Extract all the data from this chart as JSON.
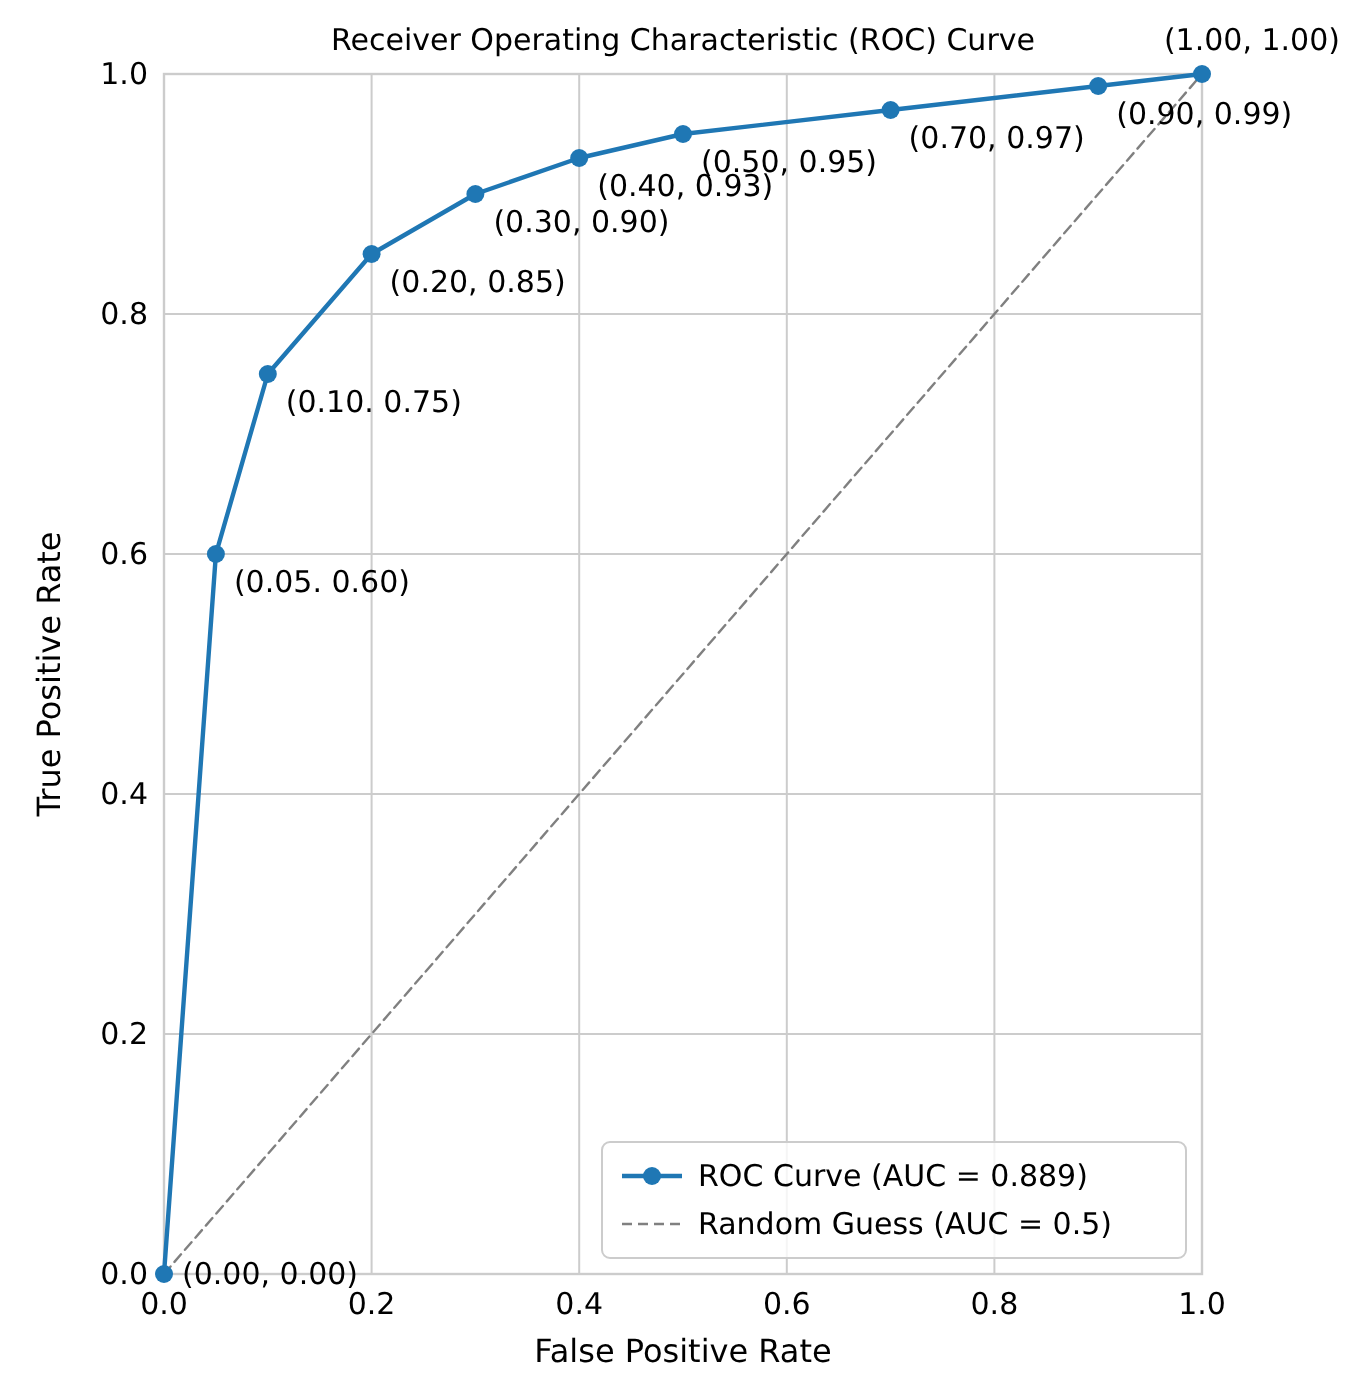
{
  "chart_data": {
    "type": "line",
    "title": "Receiver Operating Characteristic (ROC) Curve",
    "xlabel": "False Positive Rate",
    "ylabel": "True Positive Rate",
    "xlim": [
      0,
      1
    ],
    "ylim": [
      0,
      1
    ],
    "xticks": [
      {
        "value": 0,
        "label": "0.0"
      },
      {
        "value": 0.2,
        "label": "0.2"
      },
      {
        "value": 0.4,
        "label": "0.4"
      },
      {
        "value": 0.6,
        "label": "0.6"
      },
      {
        "value": 0.8,
        "label": "0.8"
      },
      {
        "value": 1,
        "label": "1.0"
      }
    ],
    "yticks": [
      {
        "value": 0,
        "label": "0.0"
      },
      {
        "value": 0.2,
        "label": "0.2"
      },
      {
        "value": 0.4,
        "label": "0.4"
      },
      {
        "value": 0.6,
        "label": "0.6"
      },
      {
        "value": 0.8,
        "label": "0.8"
      },
      {
        "value": 1,
        "label": "1.0"
      }
    ],
    "grid": true,
    "legend": "bottom right",
    "series": [
      {
        "name": "ROC Curve (AUC = 0.889)",
        "color": "#1f77b4",
        "marker": "circle",
        "line_style": "solid",
        "x": [
          0,
          0.05,
          0.1,
          0.2,
          0.3,
          0.4,
          0.5,
          0.7,
          0.9,
          1
        ],
        "values": [
          0,
          0.6,
          0.75,
          0.85,
          0.9,
          0.93,
          0.95,
          0.97,
          0.99,
          1
        ]
      },
      {
        "name": "Random Guess (AUC = 0.5)",
        "color": "#808080",
        "marker": "none",
        "line_style": "dashed",
        "x": [
          0,
          1
        ],
        "values": [
          0,
          1
        ]
      }
    ],
    "annotations": [
      {
        "text": "(0.00, 0.00)",
        "x": 0,
        "y": 0
      },
      {
        "text": "(0.05. 0.60)",
        "x": 0.05,
        "y": 0.6
      },
      {
        "text": "(0.10. 0.75)",
        "x": 0.1,
        "y": 0.75
      },
      {
        "text": "(0.20, 0.85)",
        "x": 0.2,
        "y": 0.85
      },
      {
        "text": "(0.30, 0.90)",
        "x": 0.3,
        "y": 0.9
      },
      {
        "text": "(0.40, 0.93)",
        "x": 0.4,
        "y": 0.93
      },
      {
        "text": "(0.50, 0.95)",
        "x": 0.5,
        "y": 0.95
      },
      {
        "text": "(0.70, 0.97)",
        "x": 0.7,
        "y": 0.97
      },
      {
        "text": "(0.90, 0.99)",
        "x": 0.9,
        "y": 0.99
      },
      {
        "text": "(1.00, 1.00)",
        "x": 1,
        "y": 1
      }
    ]
  }
}
